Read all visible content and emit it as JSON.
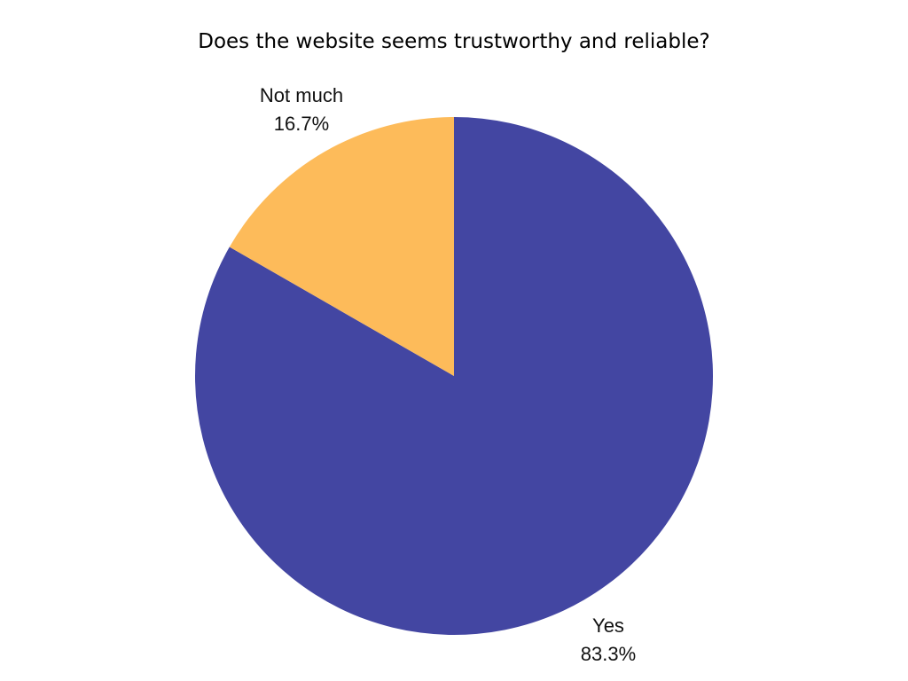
{
  "chart_data": {
    "type": "pie",
    "title": "Does the website seems trustworthy and reliable?",
    "categories": [
      "Yes",
      "Not much"
    ],
    "values": [
      83.3,
      16.7
    ],
    "value_labels": [
      "83.3%",
      "16.7%"
    ],
    "colors": [
      "#4346a2",
      "#fdbb5a"
    ],
    "legend": "none"
  }
}
